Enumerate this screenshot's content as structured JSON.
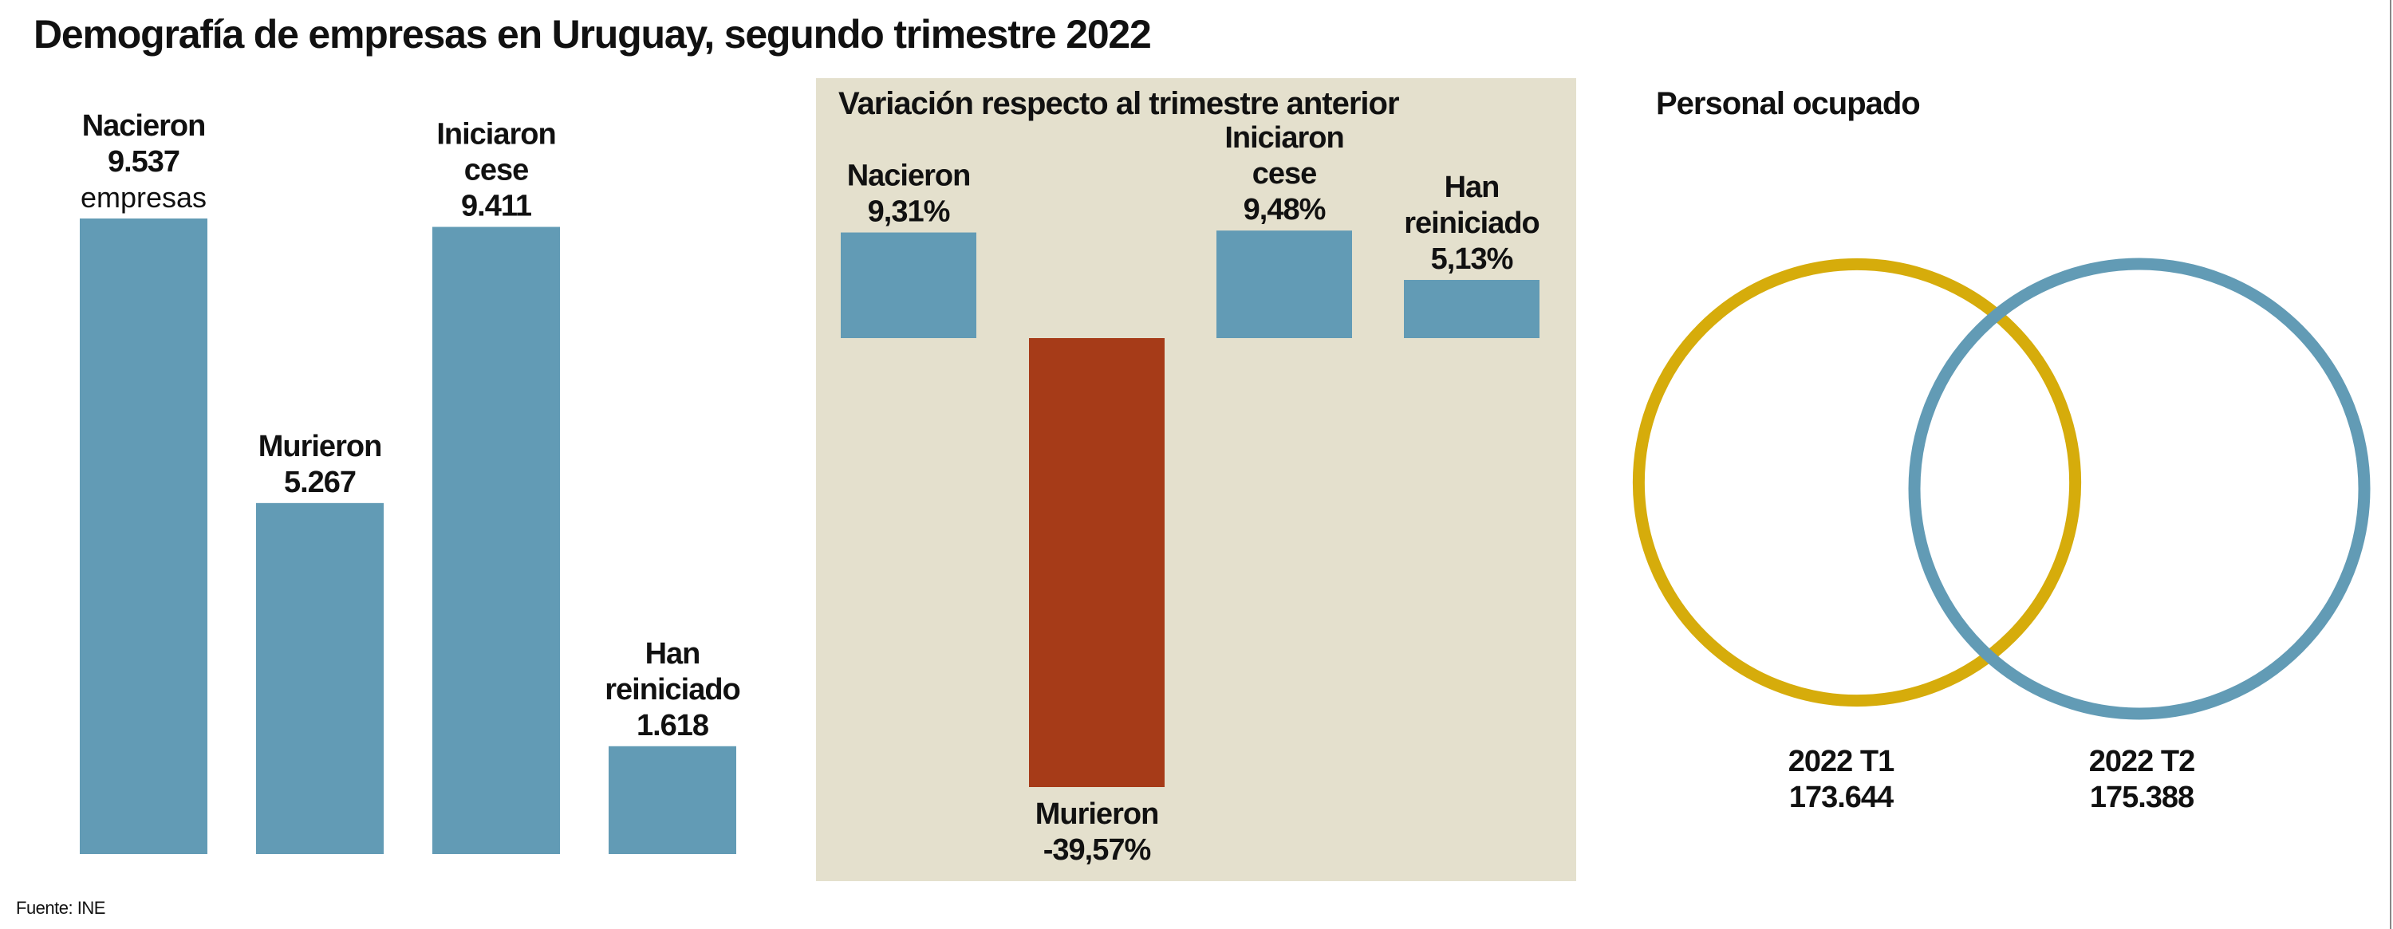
{
  "title": "Demografía de empresas en Uruguay, segundo trimestre 2022",
  "source": "Fuente: INE",
  "colors": {
    "bar_blue": "#629bb5",
    "bar_red": "#a63b18",
    "panel_bg": "#e4e0cd",
    "circle_t1": "#d6ac0b",
    "circle_t2": "#629bb5"
  },
  "chart_data": [
    {
      "type": "bar",
      "title": "",
      "categories": [
        "Nacieron",
        "Murieron",
        "Iniciaron cese",
        "Han reiniciado"
      ],
      "values": [
        9537,
        5267,
        9411,
        1618
      ],
      "labels": [
        {
          "lines": [
            "Nacieron",
            "9.537"
          ],
          "extra": "empresas"
        },
        {
          "lines": [
            "Murieron",
            "5.267"
          ]
        },
        {
          "lines": [
            "Iniciaron",
            "cese",
            "9.411"
          ]
        },
        {
          "lines": [
            "Han",
            "reiniciado",
            "1.618"
          ]
        }
      ]
    },
    {
      "type": "bar",
      "title": "Variación respecto al trimestre anterior",
      "categories": [
        "Nacieron",
        "Murieron",
        "Iniciaron cese",
        "Han reiniciado"
      ],
      "values": [
        9.31,
        -39.57,
        9.48,
        5.13
      ],
      "unit": "%",
      "labels": [
        {
          "lines": [
            "Nacieron",
            "9,31%"
          ]
        },
        {
          "lines": [
            "Murieron",
            "-39,57%"
          ]
        },
        {
          "lines": [
            "Iniciaron",
            "cese",
            "9,48%"
          ]
        },
        {
          "lines": [
            "Han",
            "reiniciado",
            "5,13%"
          ]
        }
      ]
    },
    {
      "type": "venn",
      "title": "Personal ocupado",
      "series": [
        {
          "name": "2022 T1",
          "value": 173644,
          "label": "173.644"
        },
        {
          "name": "2022 T2",
          "value": 175388,
          "label": "175.388"
        }
      ]
    }
  ]
}
